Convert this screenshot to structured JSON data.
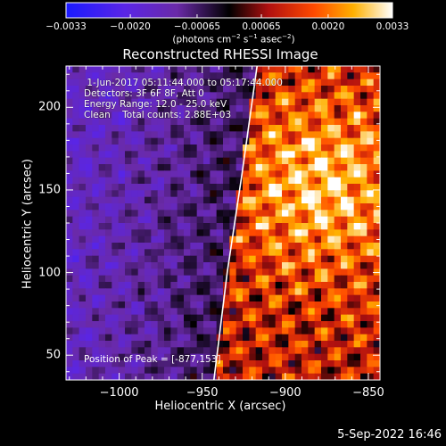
{
  "chart_data": {
    "type": "heatmap",
    "title": "Reconstructed RHESSI Image",
    "xlabel": "Heliocentric X (arcsec)",
    "ylabel": "Heliocentric Y (arcsec)",
    "xlim": [
      -1032,
      -843
    ],
    "ylim": [
      35,
      225
    ],
    "x_ticks": [
      -1000,
      -950,
      -900,
      -850
    ],
    "x_tick_labels": [
      "−1000",
      "−950",
      "−900",
      "−850"
    ],
    "y_ticks": [
      50,
      100,
      150,
      200
    ],
    "y_tick_labels": [
      "50",
      "100",
      "150",
      "200"
    ],
    "colorbar": {
      "min": -0.0033,
      "max": 0.0033,
      "ticks": [
        -0.0033,
        -0.002,
        -0.00065,
        0.00065,
        0.002,
        0.0033
      ],
      "tick_labels": [
        "−0.0033",
        "−0.0020",
        "−0.00065",
        "0.00065",
        "0.0020",
        "0.0033"
      ],
      "unit_parts": [
        "(photons cm",
        "−2",
        " s",
        "−1",
        " asec",
        "−2",
        ")"
      ]
    },
    "limb": {
      "description_points": [
        [
          -943,
          35
        ],
        [
          -935,
          100
        ],
        [
          -926,
          160
        ],
        [
          -917,
          225
        ]
      ]
    },
    "peak": {
      "x": -877,
      "y": 153
    },
    "image_notes": {
      "date": "1-Jun-2017 05:11:44.000 to 05:17:44.000",
      "detectors": "Detectors: 3F 6F 8F, Att 0",
      "energy": "Energy Range: 12.0 - 25.0 keV",
      "clean": "Clean    Total counts: 2.88E+03"
    },
    "grid": false,
    "colormap": "blue-purple-black-red-orange-yellow-white"
  },
  "labels": {
    "time_line": " 1-Jun-2017 05:11:44.000 to 05:17:44.000",
    "detectors_line": "Detectors: 3F 6F 8F, Att 0",
    "energy_line": "Energy Range: 12.0 - 25.0 keV",
    "clean_line": "Clean    Total counts: 2.88E+03",
    "peak_line": "Position of Peak = [-877,153]",
    "timestamp": "5-Sep-2022 16:46"
  },
  "colors": {
    "background": "#000000",
    "text": "#ffffff",
    "limb": "#ffffff"
  }
}
